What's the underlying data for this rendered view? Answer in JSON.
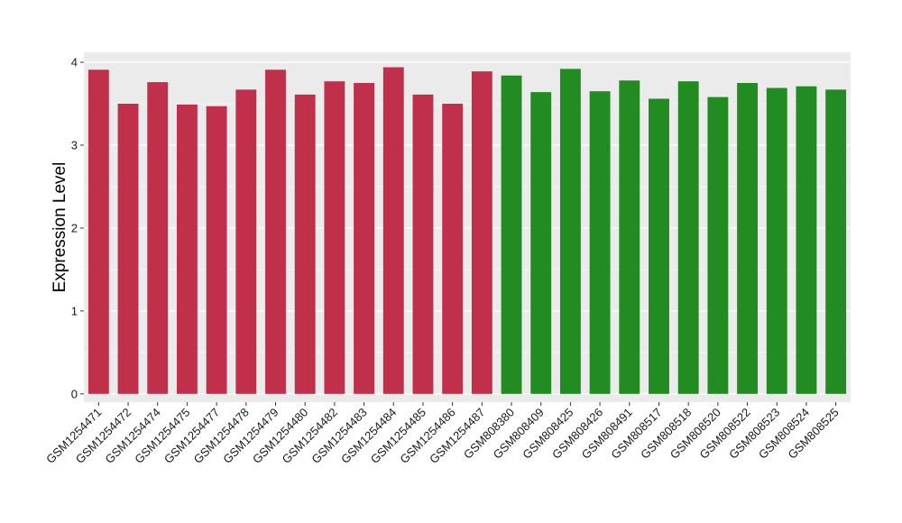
{
  "chart_data": {
    "type": "bar",
    "title": "",
    "xlabel": "",
    "ylabel": "Expression Level",
    "ylim": [
      -0.1,
      4.12
    ],
    "yticks": [
      0,
      1,
      2,
      3,
      4
    ],
    "grid": true,
    "legend": "none",
    "panel_background": "#ebebeb",
    "grid_color": "#ffffff",
    "categories": [
      "GSM1254471",
      "GSM1254472",
      "GSM1254474",
      "GSM1254475",
      "GSM1254477",
      "GSM1254478",
      "GSM1254479",
      "GSM1254480",
      "GSM1254482",
      "GSM1254483",
      "GSM1254484",
      "GSM1254485",
      "GSM1254486",
      "GSM1254487",
      "GSM808380",
      "GSM808409",
      "GSM808425",
      "GSM808426",
      "GSM808491",
      "GSM808517",
      "GSM808518",
      "GSM808520",
      "GSM808522",
      "GSM808523",
      "GSM808524",
      "GSM808525"
    ],
    "values": [
      3.91,
      3.5,
      3.76,
      3.49,
      3.47,
      3.67,
      3.91,
      3.61,
      3.77,
      3.75,
      3.94,
      3.61,
      3.5,
      3.89,
      3.84,
      3.64,
      3.92,
      3.65,
      3.78,
      3.56,
      3.77,
      3.58,
      3.75,
      3.69,
      3.71,
      3.67
    ],
    "bar_colors": [
      "#c0304a",
      "#c0304a",
      "#c0304a",
      "#c0304a",
      "#c0304a",
      "#c0304a",
      "#c0304a",
      "#c0304a",
      "#c0304a",
      "#c0304a",
      "#c0304a",
      "#c0304a",
      "#c0304a",
      "#c0304a",
      "#228b22",
      "#228b22",
      "#228b22",
      "#228b22",
      "#228b22",
      "#228b22",
      "#228b22",
      "#228b22",
      "#228b22",
      "#228b22",
      "#228b22",
      "#228b22"
    ]
  }
}
